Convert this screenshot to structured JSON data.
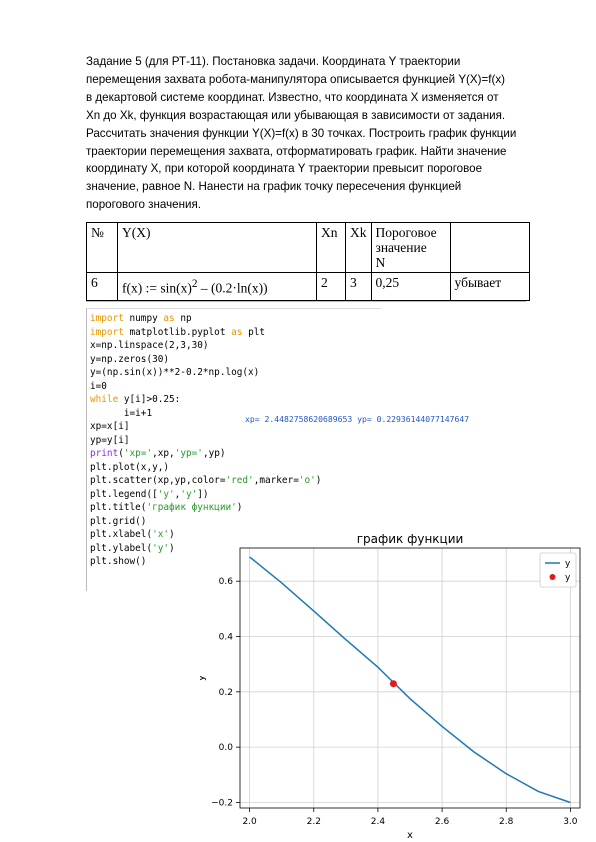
{
  "task": {
    "lines": [
      "Задание 5 (для РТ-11). Постановка задачи. Координата Y траектории",
      "перемещения захвата робота-манипулятора описывается функцией Y(X)=f(x)",
      "в декартовой системе координат. Известно, что координата X изменяется от",
      "Xn до Xk, функция возрастающая или убывающая в зависимости от задания.",
      "Рассчитать значения функции Y(X)=f(x) в 30 точках. Построить график функции",
      "траектории перемещения захвата, отформатировать график. Найти значение",
      "координату X, при которой координата Y траектории превысит пороговое",
      "значение, равное N. Нанести на график точку пересечения функцией",
      "порогового значения."
    ]
  },
  "params_table": {
    "headers": {
      "num": "№",
      "func": "Y(X)",
      "xn": "Xn",
      "xk": "Xk",
      "threshold_lines": [
        "Пороговое",
        "значение",
        "N"
      ],
      "trend": ""
    },
    "row": {
      "num": "6",
      "func_main": "f(x) := sin(x)",
      "func_sup": "2",
      "func_rest": " – (0.2·ln(x))",
      "xn": "2",
      "xk": "3",
      "threshold": "0,25",
      "trend": "убывает"
    }
  },
  "code_lines": [
    [
      {
        "t": "import",
        "c": "kw"
      },
      {
        "t": " numpy "
      },
      {
        "t": "as",
        "c": "kw"
      },
      {
        "t": " np"
      }
    ],
    [
      {
        "t": "import",
        "c": "kw"
      },
      {
        "t": " matplotlib.pyplot "
      },
      {
        "t": "as",
        "c": "kw"
      },
      {
        "t": " plt"
      }
    ],
    [
      {
        "t": "x=np.linspace(2,3,30)"
      }
    ],
    [
      {
        "t": "y=np.zeros(30)"
      }
    ],
    [
      {
        "t": "y=(np.sin(x))**2-0.2*np.log(x)"
      }
    ],
    [
      {
        "t": "i=0"
      }
    ],
    [
      {
        "t": "while",
        "c": "kw"
      },
      {
        "t": " y[i]>0.25:"
      }
    ],
    [
      {
        "t": "      i=i+1"
      }
    ],
    [
      {
        "t": "xp=x[i]"
      }
    ],
    [
      {
        "t": "yp=y[i]"
      }
    ],
    [
      {
        "t": "print",
        "c": "bi"
      },
      {
        "t": "("
      },
      {
        "t": "'xp='",
        "c": "str"
      },
      {
        "t": ",xp,"
      },
      {
        "t": "'yp='",
        "c": "str"
      },
      {
        "t": ",yp)"
      }
    ],
    [
      {
        "t": "plt.plot(x,y,)"
      }
    ],
    [
      {
        "t": "plt.scatter(xp,yp,color="
      },
      {
        "t": "'red'",
        "c": "str"
      },
      {
        "t": ",marker="
      },
      {
        "t": "'o'",
        "c": "str"
      },
      {
        "t": ")"
      }
    ],
    [
      {
        "t": "plt.legend(["
      },
      {
        "t": "'y'",
        "c": "str"
      },
      {
        "t": ","
      },
      {
        "t": "'y'",
        "c": "str"
      },
      {
        "t": "])"
      }
    ],
    [
      {
        "t": "plt.title("
      },
      {
        "t": "'график функции'",
        "c": "str"
      },
      {
        "t": ")"
      }
    ],
    [
      {
        "t": "plt.grid()"
      }
    ],
    [
      {
        "t": "plt.xlabel("
      },
      {
        "t": "'x'",
        "c": "str"
      },
      {
        "t": ")"
      }
    ],
    [
      {
        "t": "plt.ylabel("
      },
      {
        "t": "'y'",
        "c": "str"
      },
      {
        "t": ")"
      }
    ],
    [
      {
        "t": "plt.show()"
      }
    ]
  ],
  "output_text": "xp= 2.4482758620689653 yp= 0.22936144077147647",
  "chart_data": {
    "type": "line",
    "title": "график функции",
    "xlabel": "x",
    "ylabel": "y",
    "xlim": [
      1.97,
      3.03
    ],
    "ylim": [
      -0.22,
      0.72
    ],
    "xticks": [
      "2.0",
      "2.2",
      "2.4",
      "2.6",
      "2.8",
      "3.0"
    ],
    "yticks": [
      "−0.2",
      "0.0",
      "0.2",
      "0.4",
      "0.6"
    ],
    "grid": true,
    "legend_placement": "top-right",
    "series": [
      {
        "name": "y",
        "kind": "line",
        "color": "#1f77b4",
        "x": [
          2.0,
          2.1,
          2.2,
          2.3,
          2.4,
          2.5,
          2.6,
          2.7,
          2.8,
          2.9,
          3.0
        ],
        "y": [
          0.688,
          0.594,
          0.492,
          0.389,
          0.289,
          0.175,
          0.075,
          -0.018,
          -0.096,
          -0.16,
          -0.2
        ]
      },
      {
        "name": "y",
        "kind": "scatter",
        "color": "#e41a1c",
        "x": [
          2.4482758620689653
        ],
        "y": [
          0.22936144077147647
        ]
      }
    ]
  }
}
